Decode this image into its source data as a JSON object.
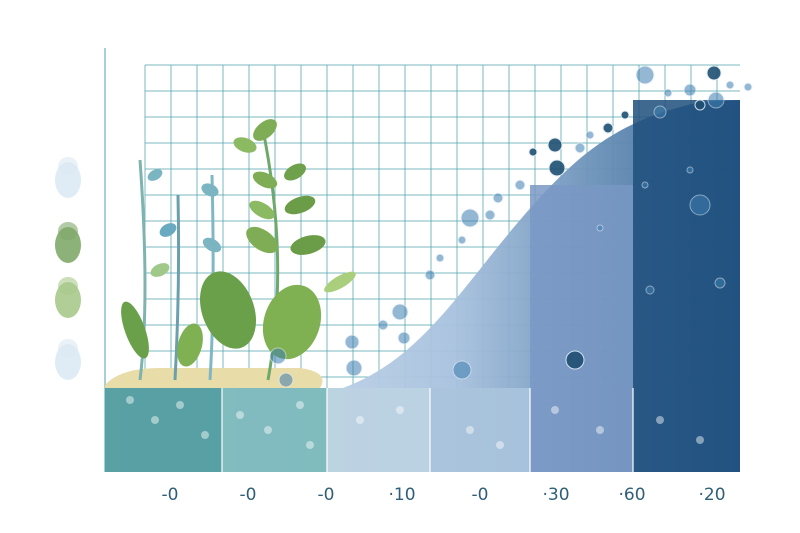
{
  "chart_data": {
    "type": "bar",
    "categories": [
      "-0",
      "-0",
      "-0",
      "·10",
      "-0",
      "·30",
      "·60",
      "·20"
    ],
    "values": [
      2,
      2,
      2,
      2,
      5,
      9,
      14,
      17
    ],
    "title": "",
    "xlabel": "",
    "ylabel": "",
    "ylim": [
      0,
      20
    ],
    "grid": true,
    "legend": "none",
    "band_colors": [
      "#4d9a9c",
      "#7bb8bb",
      "#bcd2e2",
      "#bcd2e2",
      "#a9c3dc",
      "#7998c4",
      "#5b7fb4",
      "#1e4f7c"
    ]
  },
  "decor": {
    "left_legend_colors": [
      "#dceaf4",
      "#7fa96a",
      "#a8c98c",
      "#dceaf4"
    ],
    "plant_colors": [
      "#6fa86b",
      "#8fbf6a",
      "#5e9bb4"
    ],
    "bubble_color": "#3e7fb0",
    "dark_bubble_color": "#1f4f72"
  }
}
